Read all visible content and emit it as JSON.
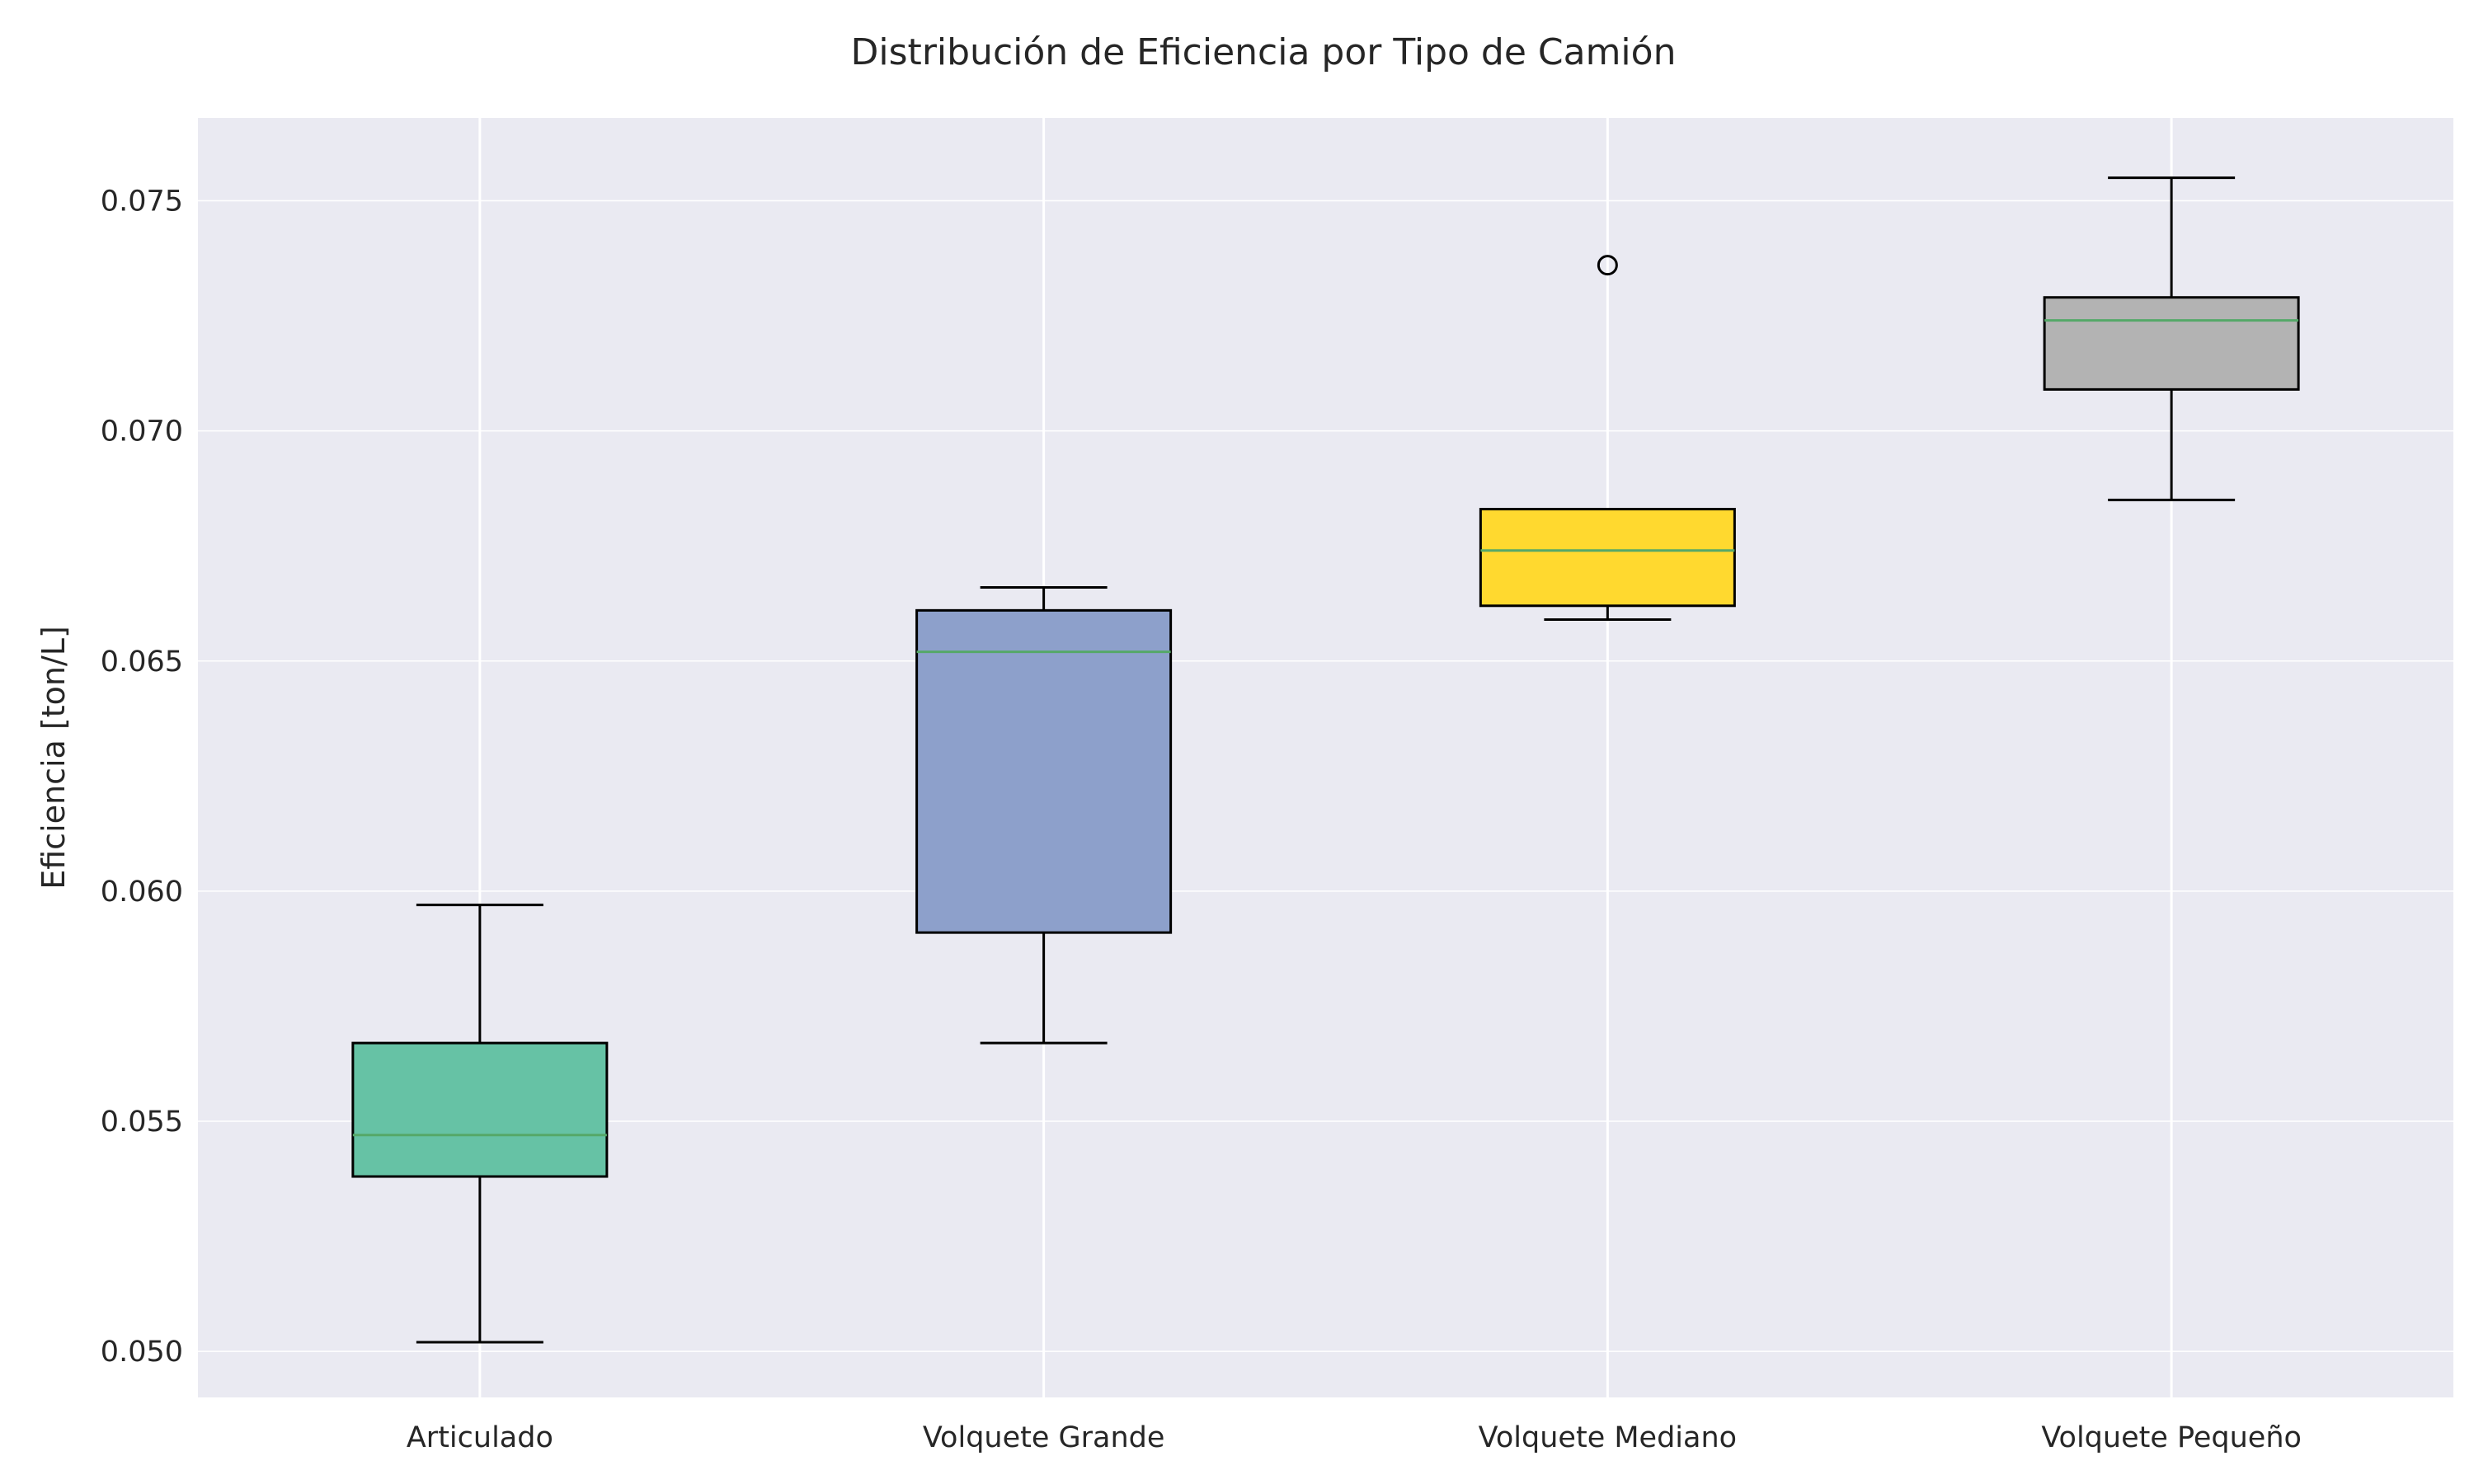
{
  "chart_data": {
    "type": "box",
    "title": "Distribución de Eficiencia por Tipo de Camión",
    "xlabel": "",
    "ylabel": "Eficiencia [ton/L]",
    "ylim": [
      0.049,
      0.0768
    ],
    "yticks": [
      "0.050",
      "0.055",
      "0.060",
      "0.065",
      "0.070",
      "0.075"
    ],
    "ytick_values": [
      0.05,
      0.055,
      0.06,
      0.065,
      0.07,
      0.075
    ],
    "grid": true,
    "categories": [
      "Articulado",
      "Volquete Grande",
      "Volquete Mediano",
      "Volquete Pequeño"
    ],
    "boxes": [
      {
        "category": "Articulado",
        "whisker_low": 0.0502,
        "q1": 0.0538,
        "median": 0.0547,
        "q3": 0.0567,
        "whisker_high": 0.0597,
        "outliers": [],
        "color": "#66c2a5"
      },
      {
        "category": "Volquete Grande",
        "whisker_low": 0.0567,
        "q1": 0.0591,
        "median": 0.0652,
        "q3": 0.0661,
        "whisker_high": 0.0666,
        "outliers": [],
        "color": "#8da0cb"
      },
      {
        "category": "Volquete Mediano",
        "whisker_low": 0.0659,
        "q1": 0.0662,
        "median": 0.0674,
        "q3": 0.0683,
        "whisker_high": 0.0683,
        "outliers": [
          0.0736
        ],
        "color": "#ffd92f"
      },
      {
        "category": "Volquete Pequeño",
        "whisker_low": 0.0685,
        "q1": 0.0709,
        "median": 0.0724,
        "q3": 0.0729,
        "whisker_high": 0.0755,
        "outliers": [],
        "color": "#b3b3b3"
      }
    ],
    "colors": {
      "plot_background": "#eaeaf2",
      "grid": "#ffffff",
      "median_line": "#55a868",
      "box_edge": "#000000"
    }
  }
}
